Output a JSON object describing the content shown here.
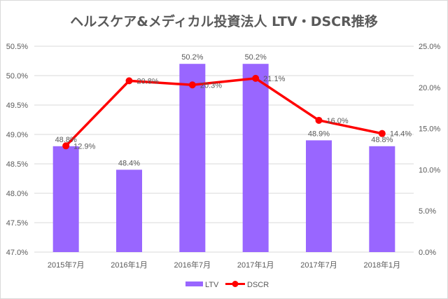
{
  "chart_data": {
    "type": "bar+line",
    "title": "ヘルスケア&メディカル投資法人 LTV・DSCR推移",
    "categories": [
      "2015年7月",
      "2016年1月",
      "2016年7月",
      "2017年1月",
      "2017年7月",
      "2018年1月"
    ],
    "series": [
      {
        "name": "LTV",
        "type": "bar",
        "axis": "left",
        "color": "#9966ff",
        "values": [
          48.8,
          48.4,
          50.2,
          50.2,
          48.9,
          48.8
        ],
        "labels": [
          "48.8%",
          "48.4%",
          "50.2%",
          "50.2%",
          "48.9%",
          "48.8%"
        ]
      },
      {
        "name": "DSCR",
        "type": "line",
        "axis": "right",
        "color": "#ff0000",
        "values": [
          12.9,
          20.8,
          20.3,
          21.1,
          16.0,
          14.4
        ],
        "labels": [
          "12.9%",
          "20.8%",
          "20.3%",
          "21.1%",
          "16.0%",
          "14.4%"
        ]
      }
    ],
    "y_left": {
      "lim": [
        47.0,
        50.5
      ],
      "ticks": [
        "47.0%",
        "47.5%",
        "48.0%",
        "48.5%",
        "49.0%",
        "49.5%",
        "50.0%",
        "50.5%"
      ]
    },
    "y_right": {
      "lim": [
        0,
        25
      ],
      "ticks": [
        "0.0%",
        "5.0%",
        "10.0%",
        "15.0%",
        "20.0%",
        "25.0%"
      ]
    },
    "grid": true,
    "legend": "bottom"
  }
}
